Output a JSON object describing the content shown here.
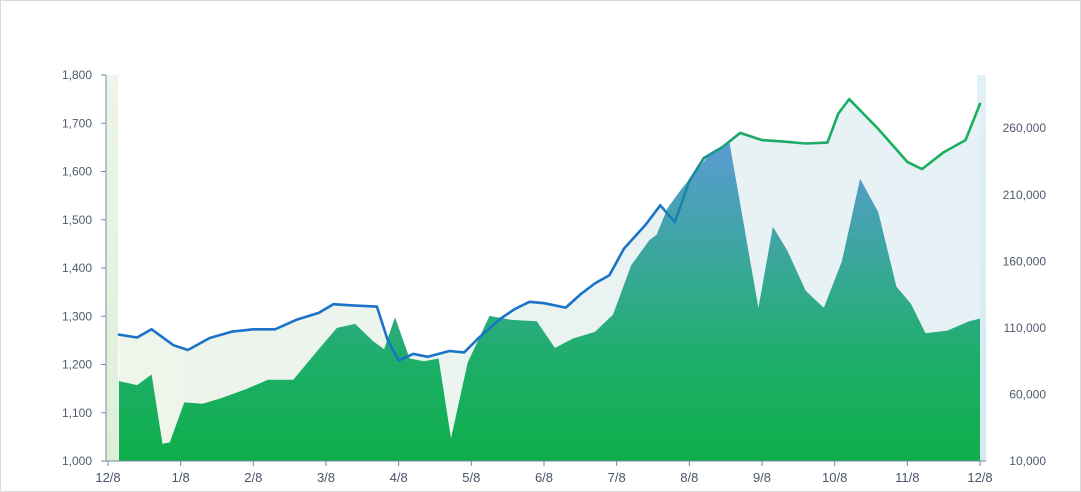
{
  "chart_data": {
    "type": "area",
    "x_tick_labels": [
      "12/8",
      "1/8",
      "2/8",
      "3/8",
      "4/8",
      "5/8",
      "6/8",
      "7/8",
      "8/8",
      "9/8",
      "10/8",
      "11/8",
      "12/8"
    ],
    "y_left": {
      "range": [
        1000,
        1800
      ],
      "ticks": [
        1000,
        1100,
        1200,
        1300,
        1400,
        1500,
        1600,
        1700,
        1800
      ],
      "tick_labels": [
        "1,000",
        "1,100",
        "1,200",
        "1,300",
        "1,400",
        "1,500",
        "1,600",
        "1,700",
        "1,800"
      ]
    },
    "y_right": {
      "range": [
        10000,
        300000
      ],
      "ticks": [
        10000,
        60000,
        110000,
        160000,
        210000,
        260000
      ],
      "tick_labels": [
        "10,000",
        "60,000",
        "110,000",
        "160,000",
        "210,000",
        "260,000"
      ]
    },
    "grid": false,
    "legend": "none",
    "series": [
      {
        "axis": "left",
        "render": "line",
        "x": [
          0.15,
          0.4,
          0.6,
          0.9,
          1.1,
          1.4,
          1.7,
          2.0,
          2.3,
          2.6,
          2.9,
          3.1,
          3.4,
          3.7,
          3.85,
          4.0,
          4.2,
          4.4,
          4.7,
          4.9,
          5.1,
          5.4,
          5.6,
          5.8,
          6.0,
          6.3,
          6.5,
          6.7,
          6.9,
          7.1,
          7.4,
          7.6,
          7.8,
          8.0,
          8.2,
          8.45,
          8.7,
          9.0,
          9.3,
          9.6,
          9.9,
          10.05,
          10.2,
          10.6,
          11.0,
          11.2,
          11.5,
          11.8,
          12.0
        ],
        "y": [
          1262,
          1256,
          1273,
          1240,
          1230,
          1255,
          1268,
          1273,
          1273,
          1293,
          1307,
          1325,
          1322,
          1320,
          1250,
          1208,
          1222,
          1216,
          1228,
          1225,
          1255,
          1295,
          1315,
          1330,
          1327,
          1318,
          1345,
          1368,
          1385,
          1440,
          1490,
          1530,
          1495,
          1580,
          1628,
          1650,
          1680,
          1665,
          1662,
          1658,
          1660,
          1720,
          1750,
          1688,
          1620,
          1605,
          1640,
          1665,
          1740
        ]
      },
      {
        "axis": "right",
        "render": "area",
        "x": [
          0.15,
          0.4,
          0.6,
          0.75,
          0.85,
          1.05,
          1.3,
          1.55,
          1.9,
          2.2,
          2.55,
          2.9,
          3.15,
          3.4,
          3.65,
          3.8,
          3.95,
          4.15,
          4.35,
          4.55,
          4.72,
          4.95,
          5.25,
          5.55,
          5.9,
          6.15,
          6.4,
          6.7,
          6.95,
          7.2,
          7.45,
          7.55,
          7.7,
          7.9,
          8.1,
          8.3,
          8.55,
          8.95,
          9.15,
          9.35,
          9.6,
          9.85,
          10.1,
          10.35,
          10.6,
          10.85,
          11.05,
          11.25,
          11.55,
          11.85,
          12.0
        ],
        "y": [
          70000,
          67000,
          75000,
          23000,
          24000,
          54000,
          53000,
          57000,
          64000,
          71000,
          71000,
          94000,
          110000,
          113000,
          100000,
          94000,
          118000,
          87000,
          85000,
          87000,
          27000,
          84000,
          119000,
          116000,
          115000,
          95000,
          102000,
          107000,
          120000,
          157000,
          176000,
          180000,
          200000,
          215000,
          228000,
          242000,
          250000,
          125000,
          186000,
          168000,
          138000,
          125000,
          160000,
          222000,
          197000,
          141000,
          128000,
          106000,
          108000,
          115000,
          117000
        ]
      }
    ]
  }
}
